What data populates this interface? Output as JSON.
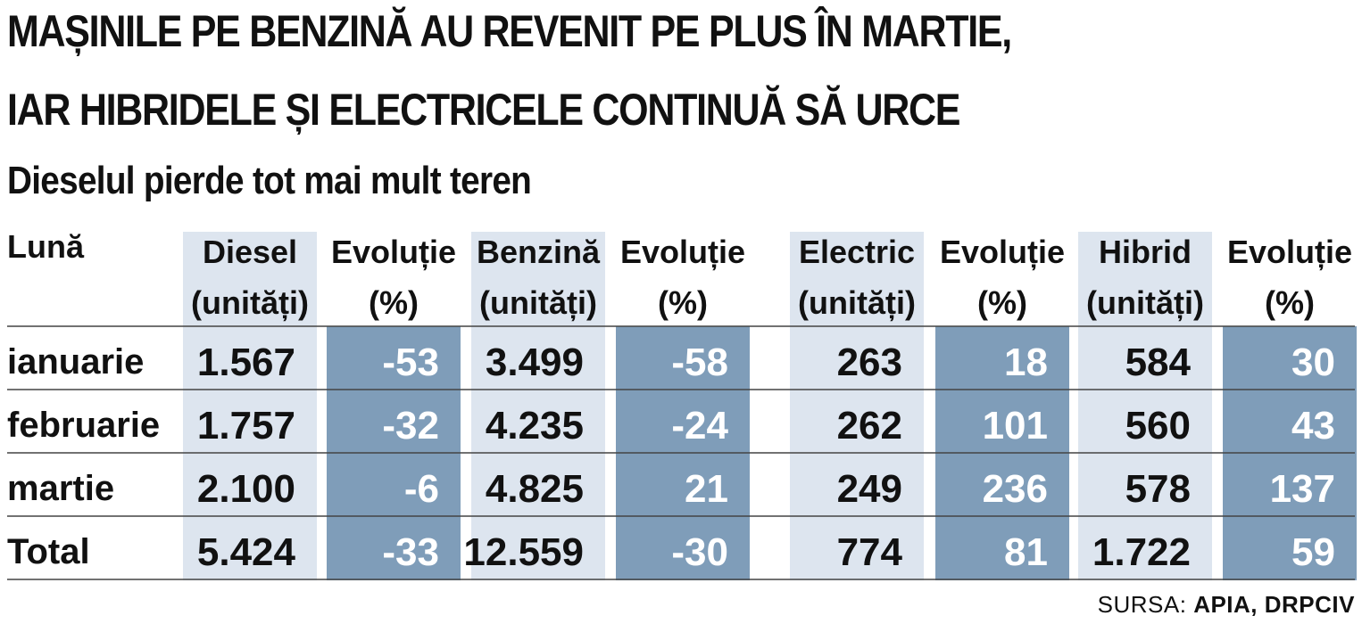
{
  "title_line1": "MAȘINILE PE BENZINĂ AU REVENIT PE PLUS ÎN MARTIE,",
  "title_line2": "IAR HIBRIDELE ȘI ELECTRICELE CONTINUĂ SĂ URCE",
  "subtitle": "Dieselul pierde tot mai mult teren",
  "source_label": "SURSA:",
  "source_value": "APIA, DRPCIV",
  "colors": {
    "units_column": "#dde5ef",
    "evolution_column": "#7f9db9",
    "units_text": "#111111",
    "evolution_text": "#ffffff",
    "rule": "#444444"
  },
  "chart_data": {
    "type": "table",
    "row_header": "Lună",
    "columns": [
      {
        "line1": "Diesel",
        "line2": "(unități)",
        "kind": "units"
      },
      {
        "line1": "Evoluție",
        "line2": "(%)",
        "kind": "evolution"
      },
      {
        "line1": "Benzină",
        "line2": "(unități)",
        "kind": "units"
      },
      {
        "line1": "Evoluție",
        "line2": "(%)",
        "kind": "evolution"
      },
      {
        "line1": "Electric",
        "line2": "(unități)",
        "kind": "units"
      },
      {
        "line1": "Evoluție",
        "line2": "(%)",
        "kind": "evolution"
      },
      {
        "line1": "Hibrid",
        "line2": "(unități)",
        "kind": "units"
      },
      {
        "line1": "Evoluție",
        "line2": "(%)",
        "kind": "evolution"
      }
    ],
    "rows": [
      {
        "label": "ianuarie",
        "values": [
          "1.567",
          "-53",
          "3.499",
          "-58",
          "263",
          "18",
          "584",
          "30"
        ]
      },
      {
        "label": "februarie",
        "values": [
          "1.757",
          "-32",
          "4.235",
          "-24",
          "262",
          "101",
          "560",
          "43"
        ]
      },
      {
        "label": "martie",
        "values": [
          "2.100",
          "-6",
          "4.825",
          "21",
          "249",
          "236",
          "578",
          "137"
        ]
      },
      {
        "label": "Total",
        "values": [
          "5.424",
          "-33",
          "12.559",
          "-30",
          "774",
          "81",
          "1.722",
          "59"
        ]
      }
    ]
  }
}
